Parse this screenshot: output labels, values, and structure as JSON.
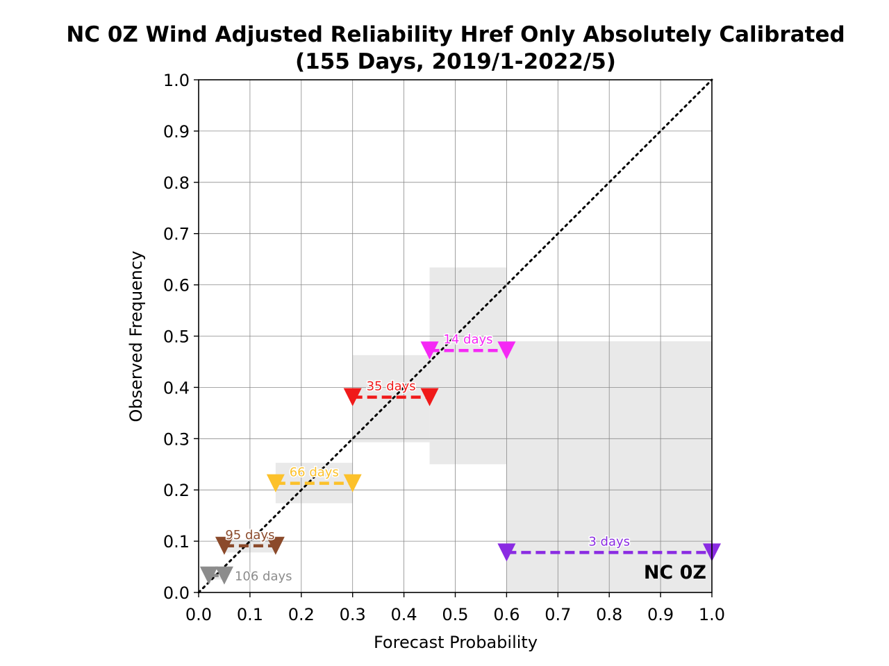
{
  "chart_data": {
    "type": "scatter",
    "title_line1": "NC 0Z Wind Adjusted Reliability Href Only Absolutely Calibrated",
    "title_line2": "(155 Days, 2019/1-2022/5)",
    "xlabel": "Forecast Probability",
    "ylabel": "Observed Frequency",
    "xlim": [
      0.0,
      1.0
    ],
    "ylim": [
      0.0,
      1.0
    ],
    "xticks": [
      "0.0",
      "0.1",
      "0.2",
      "0.3",
      "0.4",
      "0.5",
      "0.6",
      "0.7",
      "0.8",
      "0.9",
      "1.0"
    ],
    "yticks": [
      "0.0",
      "0.1",
      "0.2",
      "0.3",
      "0.4",
      "0.5",
      "0.6",
      "0.7",
      "0.8",
      "0.9",
      "1.0"
    ],
    "grid": true,
    "diagonal": "dotted y = x reference line",
    "region_label": "NC 0Z",
    "bins": [
      {
        "x0": 0.02,
        "x1": 0.05,
        "y": 0.033,
        "ci_low": 0.025,
        "ci_high": 0.04,
        "label": "106 days",
        "color": "#8c8c8c"
      },
      {
        "x0": 0.05,
        "x1": 0.15,
        "y": 0.091,
        "ci_low": 0.078,
        "ci_high": 0.103,
        "label": "95 days",
        "color": "#8b4a2b"
      },
      {
        "x0": 0.15,
        "x1": 0.3,
        "y": 0.213,
        "ci_low": 0.174,
        "ci_high": 0.253,
        "label": "66 days",
        "color": "#fcc12b"
      },
      {
        "x0": 0.3,
        "x1": 0.45,
        "y": 0.381,
        "ci_low": 0.293,
        "ci_high": 0.463,
        "label": "35 days",
        "color": "#f01a1a"
      },
      {
        "x0": 0.45,
        "x1": 0.6,
        "y": 0.472,
        "ci_low": 0.25,
        "ci_high": 0.634,
        "label": "14 days",
        "color": "#f528f5"
      },
      {
        "x0": 0.6,
        "x1": 1.0,
        "y": 0.078,
        "ci_low": 0.0,
        "ci_high": 0.49,
        "label": "3 days",
        "color": "#8a2be2"
      }
    ]
  }
}
